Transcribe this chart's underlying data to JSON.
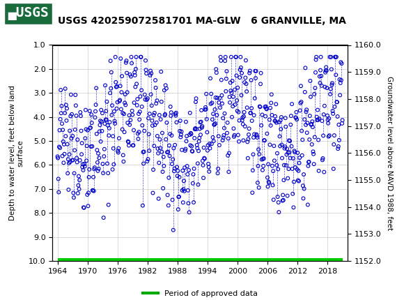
{
  "title": "USGS 420259072581701 MA-GLW   6 GRANVILLE, MA",
  "ylabel_left": "Depth to water level, feet below land\nsurface",
  "ylabel_right": "Groundwater level above NAVD 1988, feet",
  "xlabel": "",
  "ylim_left": [
    10.0,
    1.0
  ],
  "ylim_right": [
    1152.0,
    1160.0
  ],
  "xlim": [
    1963,
    2022
  ],
  "yticks_left": [
    1.0,
    2.0,
    3.0,
    4.0,
    5.0,
    6.0,
    7.0,
    8.0,
    9.0,
    10.0
  ],
  "yticks_right": [
    1152.0,
    1153.0,
    1154.0,
    1155.0,
    1156.0,
    1157.0,
    1158.0,
    1159.0,
    1160.0
  ],
  "xticks": [
    1964,
    1970,
    1976,
    1982,
    1988,
    1994,
    2000,
    2006,
    2012,
    2018
  ],
  "data_color": "#0000cc",
  "legend_line_color": "#00aa00",
  "legend_label": "Period of approved data",
  "header_bg": "#1a6b3c",
  "header_text": "USGS",
  "plot_bg": "#ffffff",
  "grid_color": "#cccccc",
  "approved_bar_color": "#00cc00",
  "approved_bar_y": 10.0,
  "approved_bar_xstart": 1964,
  "approved_bar_xend": 2021
}
